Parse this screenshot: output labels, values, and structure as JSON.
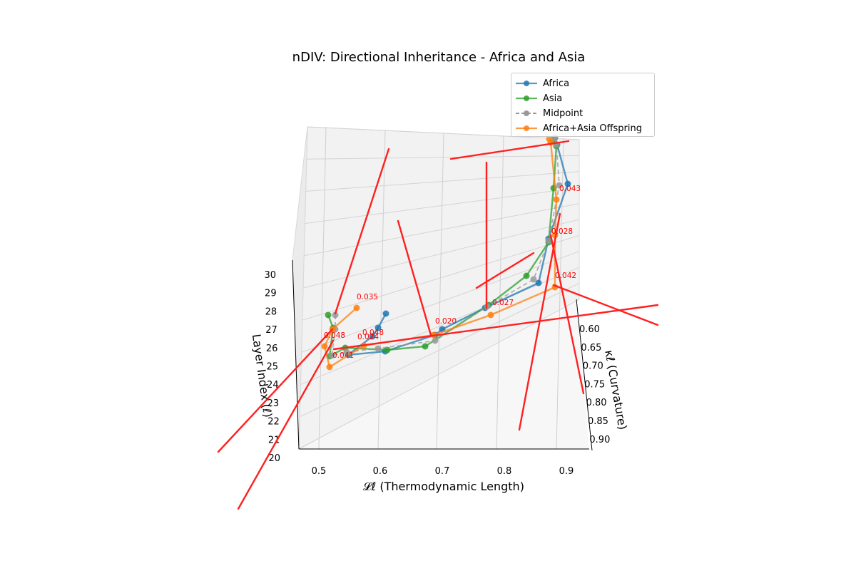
{
  "title": "nDIV: Directional Inheritance - Africa and Asia",
  "colors": {
    "africa": "#1f77b4",
    "asia": "#2ca02c",
    "midpoint": "#999999",
    "offspring": "#ff7f0e",
    "arrow": "#ff2020",
    "label": "#ff0000"
  },
  "chart_data": {
    "type": "line3d",
    "title": "nDIV: Directional Inheritance - Africa and Asia",
    "xlabel": "𝓛ℓ (Thermodynamic Length)",
    "ylabel": "κℓ (Curvature)",
    "zlabel": "Layer Index (ℓ)",
    "xticks": [
      "0.5",
      "0.6",
      "0.7",
      "0.8",
      "0.9"
    ],
    "yticks": [
      "0.60",
      "0.65",
      "0.70",
      "0.75",
      "0.80",
      "0.85",
      "0.90"
    ],
    "zticks": [
      "20",
      "21",
      "22",
      "23",
      "24",
      "25",
      "26",
      "27",
      "28",
      "29",
      "30"
    ],
    "legend": {
      "position": "upper right",
      "entries": [
        "Africa",
        "Asia",
        "Midpoint",
        "Africa+Asia Offspring"
      ]
    },
    "grid": true,
    "series": [
      {
        "name": "Africa",
        "style": "solid",
        "points": [
          [
            541,
            440
          ],
          [
            530,
            460
          ],
          [
            522,
            472
          ],
          [
            488,
            498
          ],
          [
            540,
            493
          ],
          [
            610,
            470
          ],
          [
            620,
            462
          ],
          [
            680,
            432
          ],
          [
            755,
            397
          ],
          [
            769,
            335
          ],
          [
            796,
            258
          ],
          [
            781,
            203
          ],
          [
            778,
            193
          ]
        ]
      },
      {
        "name": "Asia",
        "style": "solid",
        "points": [
          [
            460,
            442
          ],
          [
            467,
            460
          ],
          [
            462,
            500
          ],
          [
            484,
            488
          ],
          [
            543,
            491
          ],
          [
            596,
            486
          ],
          [
            685,
            428
          ],
          [
            738,
            387
          ],
          [
            769,
            340
          ],
          [
            776,
            264
          ],
          [
            780,
            205
          ],
          [
            776,
            198
          ]
        ]
      },
      {
        "name": "Midpoint",
        "style": "dashed",
        "points": [
          [
            470,
            442
          ],
          [
            470,
            462
          ],
          [
            465,
            499
          ],
          [
            486,
            494
          ],
          [
            530,
            489
          ],
          [
            610,
            478
          ],
          [
            683,
            430
          ],
          [
            748,
            392
          ],
          [
            769,
            338
          ],
          [
            784,
            260
          ],
          [
            780,
            203
          ],
          [
            778,
            194
          ]
        ]
      },
      {
        "name": "Africa+Asia Offspring",
        "style": "solid",
        "points": [
          [
            500,
            432
          ],
          [
            466,
            462
          ],
          [
            455,
            486
          ],
          [
            462,
            515
          ],
          [
            510,
            485
          ],
          [
            608,
            470
          ],
          [
            688,
            442
          ],
          [
            778,
            403
          ],
          [
            778,
            330
          ],
          [
            780,
            280
          ],
          [
            772,
            200
          ],
          [
            770,
            195
          ]
        ]
      }
    ],
    "arrows": [
      [
        [
          545,
          209
        ],
        [
          470,
          440
        ]
      ],
      [
        [
          632,
          223
        ],
        [
          797,
          198
        ]
      ],
      [
        [
          682,
          228
        ],
        [
          682,
          432
        ]
      ],
      [
        [
          558,
          310
        ],
        [
          604,
          470
        ]
      ],
      [
        [
          748,
          355
        ],
        [
          668,
          404
        ]
      ],
      [
        [
          922,
          428
        ],
        [
          468,
          490
        ]
      ],
      [
        [
          922,
          456
        ],
        [
          776,
          400
        ]
      ],
      [
        [
          772,
          330
        ],
        [
          818,
          552
        ]
      ],
      [
        [
          785,
          300
        ],
        [
          728,
          603
        ]
      ],
      [
        [
          466,
          462
        ],
        [
          306,
          634
        ]
      ],
      [
        [
          467,
          478
        ],
        [
          334,
          714
        ]
      ]
    ],
    "data_labels": [
      {
        "text": "0.043",
        "at": [
          784,
          268
        ]
      },
      {
        "text": "0.028",
        "at": [
          773,
          328
        ]
      },
      {
        "text": "0.042",
        "at": [
          778,
          390
        ]
      },
      {
        "text": "0.035",
        "at": [
          500,
          420
        ]
      },
      {
        "text": "0.027",
        "at": [
          690,
          428
        ]
      },
      {
        "text": "0.020",
        "at": [
          610,
          454
        ]
      },
      {
        "text": "0.048",
        "at": [
          508,
          470
        ]
      },
      {
        "text": "0.048",
        "at": [
          454,
          474
        ]
      },
      {
        "text": "0.024",
        "at": [
          501,
          476
        ]
      },
      {
        "text": "0.041",
        "at": [
          466,
          502
        ]
      }
    ]
  }
}
